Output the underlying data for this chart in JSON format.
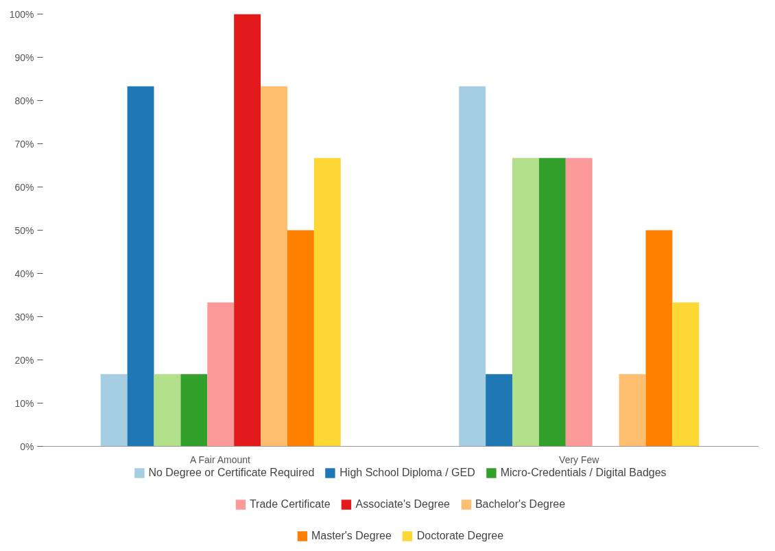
{
  "chart_data": {
    "type": "bar",
    "categories": [
      "A Fair Amount",
      "Very Few"
    ],
    "series": [
      {
        "name": "No Degree or Certificate Required",
        "color": "#a6cee3",
        "values": [
          16.7,
          83.3
        ]
      },
      {
        "name": "High School Diploma / GED",
        "color": "#1f78b4",
        "values": [
          83.3,
          16.7
        ]
      },
      {
        "color": "#b2df8a",
        "values": [
          16.7,
          66.7
        ]
      },
      {
        "name": "Micro-Credentials / Digital Badges",
        "color": "#33a02c",
        "values": [
          16.7,
          66.7
        ]
      },
      {
        "name": "Trade Certificate",
        "color": "#fb9a99",
        "values": [
          33.3,
          66.7
        ]
      },
      {
        "name": "Associate's Degree",
        "color": "#e31a1c",
        "values": [
          100,
          0
        ]
      },
      {
        "name": "Bachelor's Degree",
        "color": "#fdbf6f",
        "values": [
          83.3,
          16.7
        ]
      },
      {
        "name": "Master's Degree",
        "color": "#ff7f00",
        "values": [
          50,
          50
        ]
      },
      {
        "name": "Doctorate Degree",
        "color": "#fdd835",
        "values": [
          66.7,
          33.3
        ]
      }
    ],
    "ylim": [
      0,
      100
    ],
    "yticks": [
      {
        "value": 0,
        "label": "0%"
      },
      {
        "value": 10,
        "label": "10%"
      },
      {
        "value": 20,
        "label": "20%"
      },
      {
        "value": 30,
        "label": "30%"
      },
      {
        "value": 40,
        "label": "40%"
      },
      {
        "value": 50,
        "label": "50%"
      },
      {
        "value": 60,
        "label": "60%"
      },
      {
        "value": 70,
        "label": "70%"
      },
      {
        "value": 80,
        "label": "80%"
      },
      {
        "value": 90,
        "label": "90%"
      },
      {
        "value": 100,
        "label": "100%"
      }
    ],
    "grid": false,
    "legend": "bottom"
  }
}
